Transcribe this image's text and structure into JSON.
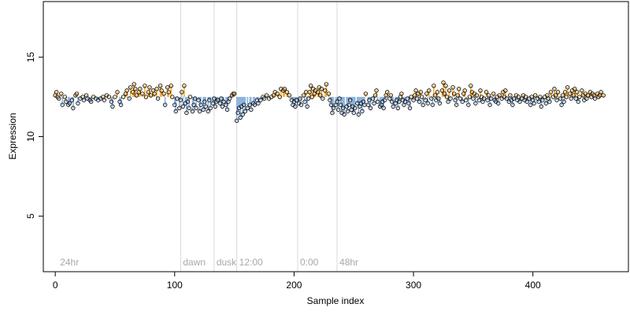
{
  "chart_data": {
    "type": "scatter",
    "xlabel": "Sample index",
    "ylabel": "Expression",
    "xlim": [
      -10,
      480
    ],
    "ylim": [
      1.5,
      18.5
    ],
    "x_ticks": [
      0,
      100,
      200,
      300,
      400
    ],
    "y_ticks": [
      5,
      10,
      15
    ],
    "baseline": 12.5,
    "colors": {
      "above": "#f5b041",
      "below": "#8fb3dc",
      "guide": "#d9d9d9",
      "annotation": "#a8a8a8",
      "point_stroke": "#000000"
    },
    "annotations": [
      {
        "x": 105,
        "label": "dawn"
      },
      {
        "x": 133,
        "label": "dusk"
      },
      {
        "x": 152,
        "label": "12:00"
      },
      {
        "x": 203,
        "label": "0:00"
      },
      {
        "x": 236,
        "label": "48hr"
      }
    ],
    "corner_label": {
      "x": 2,
      "label": "24hr"
    },
    "points": [
      [
        0,
        12.6
      ],
      [
        1,
        12.8
      ],
      [
        2,
        12.5
      ],
      [
        3,
        12.4
      ],
      [
        5,
        12.7
      ],
      [
        6,
        12.0
      ],
      [
        8,
        12.5
      ],
      [
        9,
        12.2
      ],
      [
        11,
        12.0
      ],
      [
        12,
        12.1
      ],
      [
        14,
        12.3
      ],
      [
        15,
        11.8
      ],
      [
        17,
        12.6
      ],
      [
        18,
        12.7
      ],
      [
        19,
        12.1
      ],
      [
        21,
        12.4
      ],
      [
        23,
        12.5
      ],
      [
        24,
        12.3
      ],
      [
        26,
        12.6
      ],
      [
        27,
        12.4
      ],
      [
        29,
        12.3
      ],
      [
        30,
        12.2
      ],
      [
        32,
        12.5
      ],
      [
        34,
        12.4
      ],
      [
        36,
        12.3
      ],
      [
        38,
        12.4
      ],
      [
        40,
        12.5
      ],
      [
        41,
        12.3
      ],
      [
        43,
        12.6
      ],
      [
        45,
        12.5
      ],
      [
        47,
        12.2
      ],
      [
        48,
        11.9
      ],
      [
        50,
        12.5
      ],
      [
        52,
        12.8
      ],
      [
        54,
        12.2
      ],
      [
        55,
        12.0
      ],
      [
        57,
        12.5
      ],
      [
        59,
        12.7
      ],
      [
        60,
        12.9
      ],
      [
        62,
        12.4
      ],
      [
        63,
        13.1
      ],
      [
        65,
        12.8
      ],
      [
        66,
        13.3
      ],
      [
        67,
        13.0
      ],
      [
        68,
        12.6
      ],
      [
        70,
        12.8
      ],
      [
        71,
        13.0
      ],
      [
        73,
        12.7
      ],
      [
        75,
        13.2
      ],
      [
        76,
        12.5
      ],
      [
        78,
        12.8
      ],
      [
        79,
        13.1
      ],
      [
        80,
        12.6
      ],
      [
        82,
        12.9
      ],
      [
        83,
        12.7
      ],
      [
        85,
        13.0
      ],
      [
        86,
        12.4
      ],
      [
        88,
        13.2
      ],
      [
        89,
        12.9
      ],
      [
        91,
        12.7
      ],
      [
        92,
        12.0
      ],
      [
        94,
        13.1
      ],
      [
        95,
        12.8
      ],
      [
        97,
        13.2
      ],
      [
        98,
        12.5
      ],
      [
        100,
        12.0
      ],
      [
        101,
        11.6
      ],
      [
        102,
        12.4
      ],
      [
        104,
        11.8
      ],
      [
        105,
        12.3
      ],
      [
        106,
        12.8
      ],
      [
        107,
        11.9
      ],
      [
        108,
        13.2
      ],
      [
        109,
        12.1
      ],
      [
        110,
        11.5
      ],
      [
        111,
        12.2
      ],
      [
        112,
        11.8
      ],
      [
        113,
        12.5
      ],
      [
        115,
        11.6
      ],
      [
        116,
        12.0
      ],
      [
        117,
        12.4
      ],
      [
        118,
        11.8
      ],
      [
        120,
        12.3
      ],
      [
        121,
        11.6
      ],
      [
        122,
        12.0
      ],
      [
        124,
        11.7
      ],
      [
        125,
        12.2
      ],
      [
        126,
        11.9
      ],
      [
        128,
        11.6
      ],
      [
        129,
        12.3
      ],
      [
        130,
        11.8
      ],
      [
        132,
        12.1
      ],
      [
        133,
        12.4
      ],
      [
        134,
        11.9
      ],
      [
        135,
        12.2
      ],
      [
        136,
        12.3
      ],
      [
        138,
        12.1
      ],
      [
        139,
        12.4
      ],
      [
        140,
        11.9
      ],
      [
        141,
        12.2
      ],
      [
        143,
        12.0
      ],
      [
        144,
        11.7
      ],
      [
        145,
        12.2
      ],
      [
        146,
        12.4
      ],
      [
        148,
        12.6
      ],
      [
        149,
        12.7
      ],
      [
        150,
        12.7
      ],
      [
        152,
        11.0
      ],
      [
        153,
        11.5
      ],
      [
        154,
        11.8
      ],
      [
        155,
        11.2
      ],
      [
        156,
        11.9
      ],
      [
        157,
        11.4
      ],
      [
        158,
        12.0
      ],
      [
        159,
        11.6
      ],
      [
        161,
        11.8
      ],
      [
        163,
        12.0
      ],
      [
        164,
        11.7
      ],
      [
        166,
        12.1
      ],
      [
        167,
        12.0
      ],
      [
        169,
        12.3
      ],
      [
        170,
        12.1
      ],
      [
        172,
        12.3
      ],
      [
        174,
        12.5
      ],
      [
        175,
        12.4
      ],
      [
        177,
        12.6
      ],
      [
        179,
        12.4
      ],
      [
        181,
        12.5
      ],
      [
        183,
        12.6
      ],
      [
        184,
        12.8
      ],
      [
        186,
        12.7
      ],
      [
        188,
        12.5
      ],
      [
        189,
        13.0
      ],
      [
        191,
        12.9
      ],
      [
        192,
        13.0
      ],
      [
        194,
        12.8
      ],
      [
        196,
        12.6
      ],
      [
        198,
        12.3
      ],
      [
        199,
        12.0
      ],
      [
        200,
        12.2
      ],
      [
        201,
        11.9
      ],
      [
        202,
        12.3
      ],
      [
        204,
        12.1
      ],
      [
        205,
        12.4
      ],
      [
        206,
        12.0
      ],
      [
        208,
        12.6
      ],
      [
        209,
        12.2
      ],
      [
        210,
        12.8
      ],
      [
        211,
        11.9
      ],
      [
        212,
        12.4
      ],
      [
        213,
        12.8
      ],
      [
        214,
        13.2
      ],
      [
        215,
        12.5
      ],
      [
        216,
        13.0
      ],
      [
        217,
        12.7
      ],
      [
        218,
        12.9
      ],
      [
        220,
        12.8
      ],
      [
        221,
        13.1
      ],
      [
        222,
        12.6
      ],
      [
        223,
        13.0
      ],
      [
        224,
        12.4
      ],
      [
        226,
        12.9
      ],
      [
        227,
        13.3
      ],
      [
        229,
        12.7
      ],
      [
        230,
        12.3
      ],
      [
        231,
        12.0
      ],
      [
        232,
        11.5
      ],
      [
        233,
        11.8
      ],
      [
        235,
        12.0
      ],
      [
        236,
        12.2
      ],
      [
        237,
        11.7
      ],
      [
        238,
        12.4
      ],
      [
        239,
        12.0
      ],
      [
        240,
        11.5
      ],
      [
        241,
        11.8
      ],
      [
        242,
        11.4
      ],
      [
        244,
        11.9
      ],
      [
        245,
        11.6
      ],
      [
        246,
        12.0
      ],
      [
        247,
        12.3
      ],
      [
        248,
        11.7
      ],
      [
        249,
        11.9
      ],
      [
        250,
        11.5
      ],
      [
        251,
        11.8
      ],
      [
        253,
        12.1
      ],
      [
        254,
        11.4
      ],
      [
        255,
        11.9
      ],
      [
        256,
        12.1
      ],
      [
        257,
        11.6
      ],
      [
        258,
        12.2
      ],
      [
        259,
        12.0
      ],
      [
        260,
        12.7
      ],
      [
        262,
        12.0
      ],
      [
        263,
        12.3
      ],
      [
        264,
        11.8
      ],
      [
        266,
        12.4
      ],
      [
        267,
        12.1
      ],
      [
        268,
        12.6
      ],
      [
        269,
        12.9
      ],
      [
        270,
        12.2
      ],
      [
        272,
        11.9
      ],
      [
        273,
        12.0
      ],
      [
        274,
        12.2
      ],
      [
        275,
        11.8
      ],
      [
        276,
        12.3
      ],
      [
        277,
        12.6
      ],
      [
        278,
        12.8
      ],
      [
        280,
        12.4
      ],
      [
        281,
        12.6
      ],
      [
        282,
        12.2
      ],
      [
        283,
        11.9
      ],
      [
        285,
        12.1
      ],
      [
        286,
        12.3
      ],
      [
        287,
        11.8
      ],
      [
        288,
        12.2
      ],
      [
        289,
        12.5
      ],
      [
        290,
        12.7
      ],
      [
        291,
        12.3
      ],
      [
        292,
        12.0
      ],
      [
        293,
        12.2
      ],
      [
        295,
        12.4
      ],
      [
        296,
        12.1
      ],
      [
        297,
        11.8
      ],
      [
        298,
        12.5
      ],
      [
        300,
        12.3
      ],
      [
        301,
        12.6
      ],
      [
        302,
        12.9
      ],
      [
        303,
        12.4
      ],
      [
        304,
        12.7
      ],
      [
        305,
        12.2
      ],
      [
        306,
        12.8
      ],
      [
        307,
        12.5
      ],
      [
        308,
        12.0
      ],
      [
        310,
        12.3
      ],
      [
        311,
        12.7
      ],
      [
        312,
        12.1
      ],
      [
        313,
        12.9
      ],
      [
        315,
        12.4
      ],
      [
        316,
        12.0
      ],
      [
        317,
        13.2
      ],
      [
        318,
        12.6
      ],
      [
        319,
        12.3
      ],
      [
        320,
        12.8
      ],
      [
        321,
        12.4
      ],
      [
        322,
        12.1
      ],
      [
        324,
        12.9
      ],
      [
        325,
        13.4
      ],
      [
        326,
        12.7
      ],
      [
        327,
        13.2
      ],
      [
        328,
        12.5
      ],
      [
        329,
        12.2
      ],
      [
        330,
        12.9
      ],
      [
        331,
        12.4
      ],
      [
        333,
        13.1
      ],
      [
        334,
        12.7
      ],
      [
        335,
        12.3
      ],
      [
        336,
        12.0
      ],
      [
        337,
        12.6
      ],
      [
        338,
        13.0
      ],
      [
        339,
        12.4
      ],
      [
        341,
        12.2
      ],
      [
        342,
        12.7
      ],
      [
        343,
        12.9
      ],
      [
        344,
        12.3
      ],
      [
        346,
        12.0
      ],
      [
        347,
        12.5
      ],
      [
        348,
        13.2
      ],
      [
        349,
        12.8
      ],
      [
        350,
        12.4
      ],
      [
        351,
        12.7
      ],
      [
        352,
        12.1
      ],
      [
        353,
        12.6
      ],
      [
        355,
        12.3
      ],
      [
        356,
        12.9
      ],
      [
        357,
        12.5
      ],
      [
        358,
        12.2
      ],
      [
        359,
        12.4
      ],
      [
        361,
        12.8
      ],
      [
        362,
        12.3
      ],
      [
        363,
        12.6
      ],
      [
        364,
        12.0
      ],
      [
        365,
        12.4
      ],
      [
        367,
        12.7
      ],
      [
        368,
        12.3
      ],
      [
        369,
        12.2
      ],
      [
        370,
        12.5
      ],
      [
        371,
        12.1
      ],
      [
        372,
        12.6
      ],
      [
        374,
        12.4
      ],
      [
        375,
        12.8
      ],
      [
        376,
        12.5
      ],
      [
        377,
        12.9
      ],
      [
        378,
        12.4
      ],
      [
        380,
        12.2
      ],
      [
        381,
        12.6
      ],
      [
        382,
        12.3
      ],
      [
        383,
        12.0
      ],
      [
        384,
        12.4
      ],
      [
        386,
        12.6
      ],
      [
        387,
        12.3
      ],
      [
        388,
        12.5
      ],
      [
        389,
        12.2
      ],
      [
        391,
        12.4
      ],
      [
        392,
        12.6
      ],
      [
        393,
        12.3
      ],
      [
        394,
        12.5
      ],
      [
        395,
        12.2
      ],
      [
        397,
        12.4
      ],
      [
        398,
        12.0
      ],
      [
        399,
        12.5
      ],
      [
        400,
        12.3
      ],
      [
        401,
        12.1
      ],
      [
        402,
        12.6
      ],
      [
        404,
        12.4
      ],
      [
        405,
        12.2
      ],
      [
        406,
        12.5
      ],
      [
        407,
        11.9
      ],
      [
        408,
        12.3
      ],
      [
        410,
        12.5
      ],
      [
        411,
        12.1
      ],
      [
        412,
        12.6
      ],
      [
        413,
        12.4
      ],
      [
        414,
        12.2
      ],
      [
        415,
        12.8
      ],
      [
        417,
        12.5
      ],
      [
        418,
        13.0
      ],
      [
        419,
        12.6
      ],
      [
        420,
        12.3
      ],
      [
        421,
        12.8
      ],
      [
        423,
        12.4
      ],
      [
        424,
        12.0
      ],
      [
        425,
        12.6
      ],
      [
        426,
        12.2
      ],
      [
        427,
        12.8
      ],
      [
        428,
        12.5
      ],
      [
        429,
        13.1
      ],
      [
        431,
        12.7
      ],
      [
        432,
        12.4
      ],
      [
        433,
        12.9
      ],
      [
        434,
        12.6
      ],
      [
        435,
        13.0
      ],
      [
        436,
        12.4
      ],
      [
        437,
        12.8
      ],
      [
        438,
        12.2
      ],
      [
        439,
        12.5
      ],
      [
        441,
        12.9
      ],
      [
        442,
        12.6
      ],
      [
        443,
        12.3
      ],
      [
        444,
        12.7
      ],
      [
        445,
        12.4
      ],
      [
        446,
        12.6
      ],
      [
        448,
        12.8
      ],
      [
        449,
        12.5
      ],
      [
        450,
        12.7
      ],
      [
        451,
        12.6
      ],
      [
        452,
        12.4
      ],
      [
        454,
        12.7
      ],
      [
        455,
        12.5
      ],
      [
        456,
        12.6
      ],
      [
        457,
        12.8
      ],
      [
        459,
        12.6
      ]
    ]
  }
}
